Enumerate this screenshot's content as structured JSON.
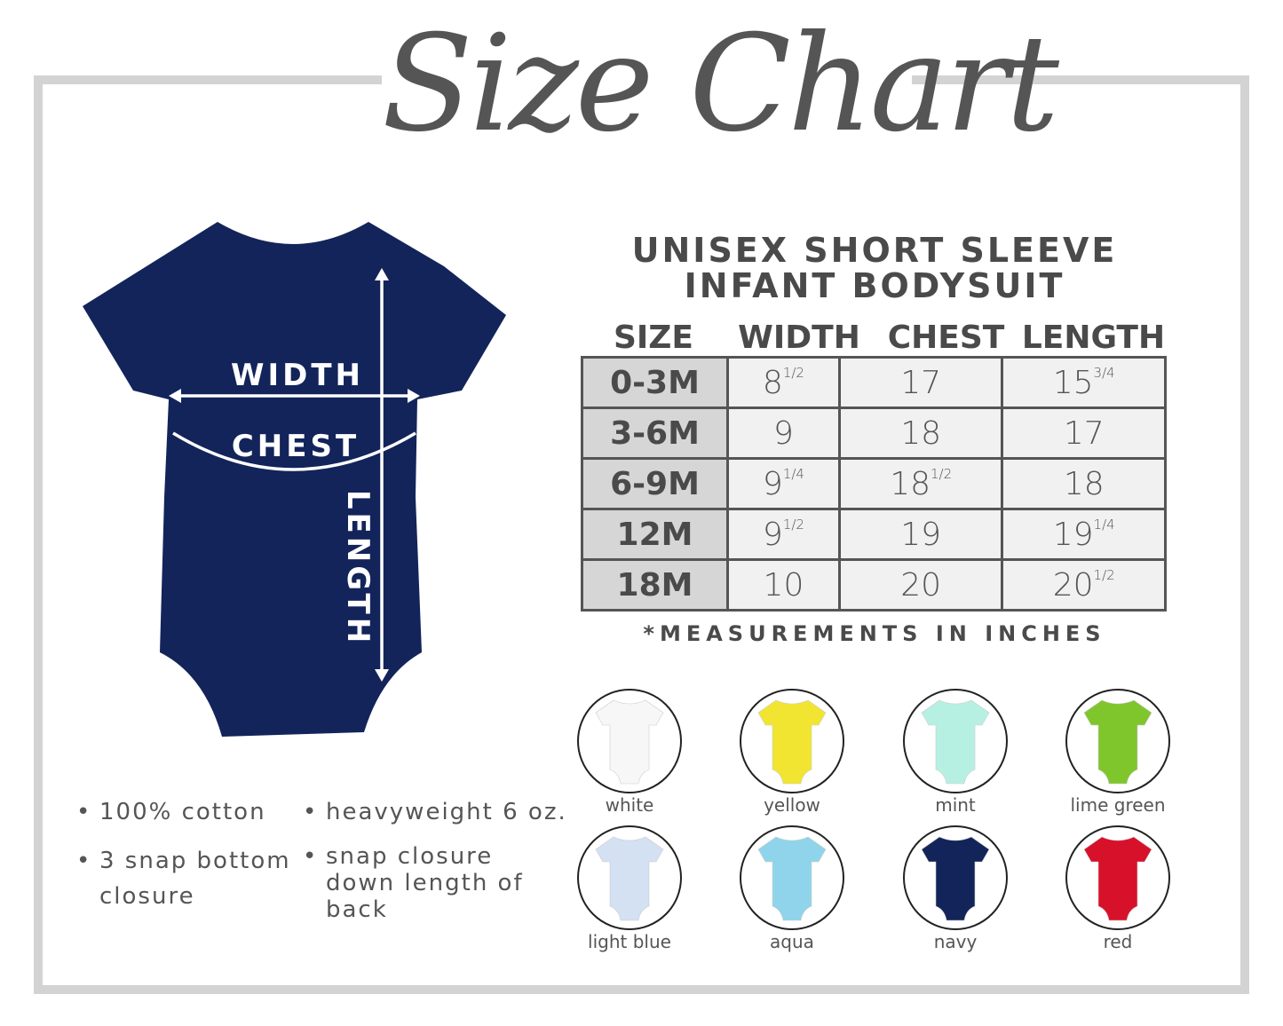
{
  "title": "Size Chart",
  "product": {
    "line1": "UNISEX SHORT SLEEVE",
    "line2": "INFANT BODYSUIT"
  },
  "diagram": {
    "width_label": "WIDTH",
    "chest_label": "CHEST",
    "length_label": "LENGTH",
    "garment_color": "#13245a"
  },
  "table": {
    "headers": [
      "SIZE",
      "WIDTH",
      "CHEST",
      "LENGTH"
    ],
    "rows": [
      {
        "size": "0-3M",
        "width": {
          "v": "8",
          "f": "1/2"
        },
        "chest": {
          "v": "17",
          "f": ""
        },
        "length": {
          "v": "15",
          "f": "3/4"
        }
      },
      {
        "size": "3-6M",
        "width": {
          "v": "9",
          "f": ""
        },
        "chest": {
          "v": "18",
          "f": ""
        },
        "length": {
          "v": "17",
          "f": ""
        }
      },
      {
        "size": "6-9M",
        "width": {
          "v": "9",
          "f": "1/4"
        },
        "chest": {
          "v": "18",
          "f": "1/2"
        },
        "length": {
          "v": "18",
          "f": ""
        }
      },
      {
        "size": "12M",
        "width": {
          "v": "9",
          "f": "1/2"
        },
        "chest": {
          "v": "19",
          "f": ""
        },
        "length": {
          "v": "19",
          "f": "1/4"
        }
      },
      {
        "size": "18M",
        "width": {
          "v": "10",
          "f": ""
        },
        "chest": {
          "v": "20",
          "f": ""
        },
        "length": {
          "v": "20",
          "f": "1/2"
        }
      }
    ],
    "note": "*MEASUREMENTS IN INCHES"
  },
  "features": [
    "100% cotton",
    "heavyweight 6 oz.",
    "3 snap bottom closure",
    "snap closure down length of back"
  ],
  "colors": [
    {
      "name": "white",
      "hex": "#f7f7f7"
    },
    {
      "name": "yellow",
      "hex": "#f2e531"
    },
    {
      "name": "mint",
      "hex": "#b6f0e2"
    },
    {
      "name": "lime green",
      "hex": "#7fc62c"
    },
    {
      "name": "light blue",
      "hex": "#d3e1f3"
    },
    {
      "name": "aqua",
      "hex": "#8fd4ea"
    },
    {
      "name": "navy",
      "hex": "#13245a"
    },
    {
      "name": "red",
      "hex": "#d8112a"
    }
  ]
}
